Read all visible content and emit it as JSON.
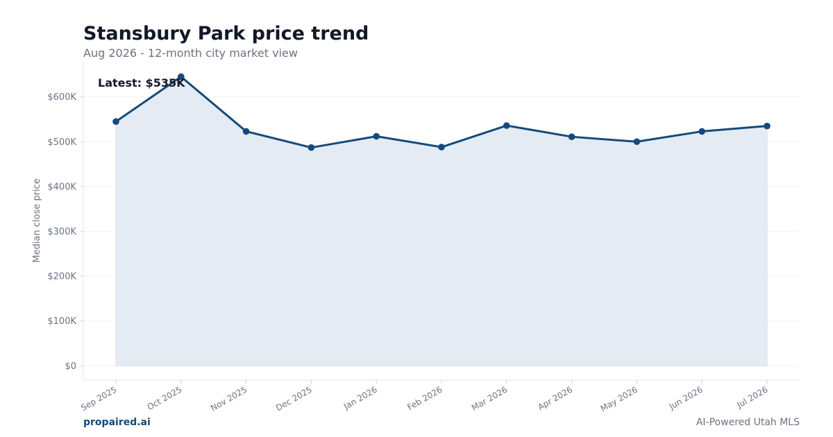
{
  "header": {
    "title": "Stansbury Park price trend",
    "subtitle": "Aug 2026 - 12-month city market view"
  },
  "footer": {
    "brand": "propaired.ai",
    "tagline": "AI-Powered Utah MLS"
  },
  "colors": {
    "line": "#144a7b",
    "fill": "#e5ebf3",
    "text": "#111827",
    "muted": "#6b7280"
  },
  "chart_data": {
    "type": "area",
    "categories": [
      "Sep 2025",
      "Oct 2025",
      "Nov 2025",
      "Dec 2025",
      "Jan 2026",
      "Feb 2026",
      "Mar 2026",
      "Apr 2026",
      "May 2026",
      "Jun 2026",
      "Jul 2026"
    ],
    "values": [
      545000,
      645000,
      523000,
      487000,
      512000,
      488000,
      536000,
      511000,
      500000,
      523000,
      535000
    ],
    "ylabel": "Median close price",
    "y_ticks": [
      "$0",
      "$100K",
      "$200K",
      "$300K",
      "$400K",
      "$500K",
      "$600K"
    ],
    "y_tick_values": [
      0,
      100000,
      200000,
      300000,
      400000,
      500000,
      600000
    ],
    "ylim": [
      -32000,
      680000
    ],
    "annotation": "Latest: $535K",
    "grid": true
  }
}
